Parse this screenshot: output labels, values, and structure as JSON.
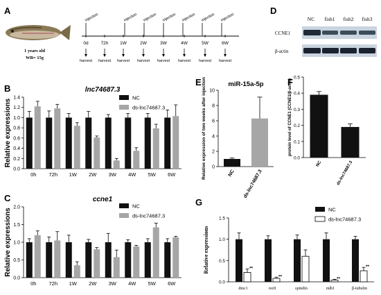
{
  "chart_data": [
    {
      "panel": "A",
      "type": "timeline",
      "fish_caption": [
        "1 years old",
        "WB= 15g"
      ],
      "injection_label": "injection",
      "harvest_label": "harvest",
      "timepoints": [
        "0d",
        "72h",
        "1W",
        "2W",
        "3W",
        "4W",
        "5W",
        "6W"
      ]
    },
    {
      "panel": "B",
      "type": "bar",
      "title": "lnc74687.3",
      "ylabel": "Relative expressions",
      "ylim": [
        0,
        1.4
      ],
      "yticks": [
        0.0,
        0.2,
        0.4,
        0.6,
        0.8,
        1.0,
        1.2,
        1.4
      ],
      "categories": [
        "0h",
        "72h",
        "1W",
        "2W",
        "3W",
        "4W",
        "5W",
        "6W"
      ],
      "series": [
        {
          "name": "NC",
          "color": "#111111",
          "values": [
            1.0,
            1.0,
            1.0,
            1.0,
            1.0,
            1.0,
            1.0,
            1.0
          ],
          "errors": [
            0.12,
            0.13,
            0.08,
            0.12,
            0.06,
            0.08,
            0.08,
            0.15
          ]
        },
        {
          "name": "ds-lnc74687.3",
          "color": "#a6a6a6",
          "values": [
            1.22,
            1.18,
            0.84,
            0.61,
            0.16,
            0.35,
            0.79,
            1.03
          ],
          "errors": [
            0.1,
            0.08,
            0.06,
            0.03,
            0.04,
            0.06,
            0.08,
            0.22
          ]
        }
      ],
      "legend": "top-right"
    },
    {
      "panel": "C",
      "type": "bar",
      "title": "ccne1",
      "ylabel": "Relative expressions",
      "ylim": [
        0,
        2.0
      ],
      "yticks": [
        0.0,
        0.5,
        1.0,
        1.5,
        2.0
      ],
      "categories": [
        "0h",
        "72h",
        "1W",
        "2W",
        "3W",
        "4W",
        "5W",
        "6W"
      ],
      "series": [
        {
          "name": "NC",
          "color": "#111111",
          "values": [
            1.0,
            1.0,
            1.0,
            1.0,
            1.0,
            1.0,
            1.0,
            1.0
          ],
          "errors": [
            0.1,
            0.15,
            0.2,
            0.08,
            0.25,
            0.07,
            0.1,
            0.1
          ]
        },
        {
          "name": "ds-lnc74687.3",
          "color": "#a6a6a6",
          "values": [
            1.2,
            1.05,
            0.35,
            0.8,
            0.58,
            0.88,
            1.42,
            1.14
          ],
          "errors": [
            0.12,
            0.25,
            0.1,
            0.05,
            0.2,
            0.03,
            0.12,
            0.03
          ]
        }
      ],
      "legend": "top-right"
    },
    {
      "panel": "D",
      "type": "blot",
      "lanes": [
        "NC",
        "fish1",
        "fish2",
        "fish3"
      ],
      "rows": [
        "CCNE1",
        "β-actin"
      ]
    },
    {
      "panel": "E",
      "type": "bar",
      "title": "miR-15a-5p",
      "ylabel": "Relative expression of two weeks after injection",
      "ylim": [
        0,
        10
      ],
      "yticks": [
        0,
        2,
        4,
        6,
        8,
        10
      ],
      "categories": [
        "NC",
        "ds-lnc74687.3"
      ],
      "values": [
        1.0,
        6.3
      ],
      "errors": [
        0.12,
        2.8
      ],
      "colors": [
        "#111111",
        "#a6a6a6"
      ]
    },
    {
      "panel": "F",
      "type": "bar",
      "ylabel": "protein level of CCNE1 (CCNE1/β-actin)",
      "ylim": [
        0.0,
        0.5
      ],
      "yticks": [
        0.0,
        0.1,
        0.2,
        0.3,
        0.4,
        0.5
      ],
      "categories": [
        "NC",
        "ds-lnc74687.3"
      ],
      "values": [
        0.39,
        0.19
      ],
      "errors": [
        0.02,
        0.02
      ],
      "colors": [
        "#111111",
        "#111111"
      ]
    },
    {
      "panel": "G",
      "type": "bar",
      "ylabel": "Relative expressions",
      "ylim": [
        0.0,
        1.5
      ],
      "yticks": [
        0.0,
        0.5,
        1.0,
        1.5
      ],
      "categories": [
        "dmc1",
        "rec8",
        "spindin",
        "mlh1",
        "β-tubulin"
      ],
      "series": [
        {
          "name": "NC",
          "color": "#111111",
          "values": [
            1.0,
            1.0,
            1.0,
            1.0,
            1.0
          ],
          "errors": [
            0.15,
            0.08,
            0.1,
            0.15,
            0.07
          ]
        },
        {
          "name": "ds-lnc74687.3",
          "color": "#ffffff",
          "values": [
            0.22,
            0.08,
            0.6,
            0.04,
            0.26
          ],
          "errors": [
            0.08,
            0.03,
            0.15,
            0.02,
            0.08
          ]
        }
      ],
      "significance": [
        "**",
        "**",
        "",
        "**",
        "**"
      ],
      "legend": "top-right"
    }
  ],
  "panel_labels": {
    "A": "A",
    "B": "B",
    "C": "C",
    "D": "D",
    "E": "E",
    "F": "F",
    "G": "G"
  }
}
